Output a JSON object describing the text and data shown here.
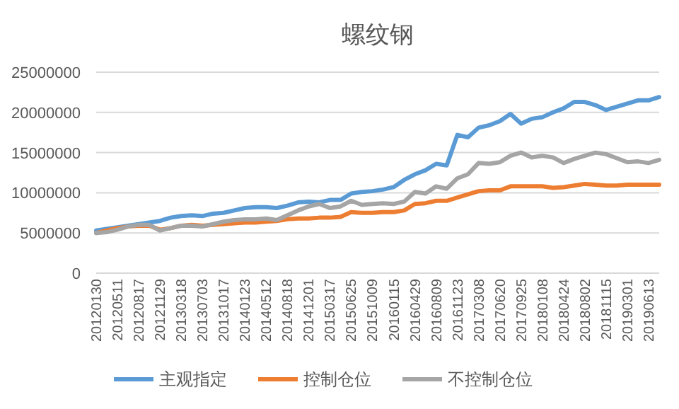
{
  "chart_data": {
    "type": "line",
    "title": "螺纹钢",
    "categories": [
      "20120130",
      null,
      "20120511",
      null,
      "20120817",
      null,
      "20121129",
      null,
      "20130318",
      null,
      "20130703",
      null,
      "20131017",
      null,
      "20140123",
      null,
      "20140512",
      null,
      "20140818",
      null,
      "20141201",
      null,
      "20150317",
      null,
      "20150625",
      null,
      "20151009",
      null,
      "20160115",
      null,
      "20160429",
      null,
      "20160809",
      null,
      "20161123",
      null,
      "20170308",
      null,
      "20170620",
      null,
      "20170925",
      null,
      "20180108",
      null,
      "20180424",
      null,
      "20180802",
      null,
      "20181115",
      null,
      "20190301",
      null,
      "20190613",
      null
    ],
    "series": [
      {
        "name": "主观指定",
        "color": "#5b9bd5",
        "values": [
          5300000,
          5500000,
          5700000,
          5900000,
          6100000,
          6300000,
          6500000,
          6900000,
          7100000,
          7200000,
          7100000,
          7400000,
          7500000,
          7800000,
          8100000,
          8200000,
          8200000,
          8100000,
          8400000,
          8800000,
          8900000,
          8800000,
          9100000,
          9100000,
          9900000,
          10100000,
          10200000,
          10400000,
          10700000,
          11600000,
          12300000,
          12800000,
          13600000,
          13400000,
          17200000,
          16900000,
          18100000,
          18400000,
          18900000,
          19800000,
          18600000,
          19200000,
          19400000,
          20000000,
          20500000,
          21300000,
          21300000,
          20900000,
          20300000,
          20700000,
          21100000,
          21500000,
          21500000,
          21900000
        ]
      },
      {
        "name": "控制仓位",
        "color": "#ed7d31",
        "values": [
          5000000,
          5300000,
          5600000,
          5800000,
          5900000,
          5900000,
          5400000,
          5600000,
          5900000,
          6000000,
          5900000,
          6000000,
          6100000,
          6200000,
          6300000,
          6300000,
          6400000,
          6500000,
          6700000,
          6800000,
          6800000,
          6900000,
          6900000,
          7000000,
          7600000,
          7500000,
          7500000,
          7600000,
          7600000,
          7800000,
          8600000,
          8700000,
          9000000,
          9000000,
          9400000,
          9800000,
          10200000,
          10300000,
          10300000,
          10800000,
          10800000,
          10800000,
          10800000,
          10600000,
          10700000,
          10900000,
          11100000,
          11000000,
          10900000,
          10900000,
          11000000,
          11000000,
          11000000,
          11000000
        ]
      },
      {
        "name": "不控制仓位",
        "color": "#a5a5a5",
        "values": [
          5000000,
          5100000,
          5400000,
          5800000,
          6000000,
          6000000,
          5300000,
          5600000,
          5900000,
          5900000,
          5800000,
          6100000,
          6400000,
          6600000,
          6700000,
          6700000,
          6800000,
          6600000,
          7200000,
          7800000,
          8300000,
          8600000,
          8100000,
          8300000,
          9000000,
          8500000,
          8600000,
          8700000,
          8600000,
          8900000,
          10100000,
          9900000,
          10800000,
          10500000,
          11800000,
          12300000,
          13700000,
          13600000,
          13800000,
          14600000,
          15000000,
          14400000,
          14600000,
          14400000,
          13700000,
          14200000,
          14600000,
          15000000,
          14800000,
          14300000,
          13800000,
          13900000,
          13700000,
          14100000
        ]
      }
    ],
    "ylim": [
      0,
      25000000
    ],
    "yticks": [
      0,
      5000000,
      10000000,
      15000000,
      20000000,
      25000000
    ],
    "grid": "y",
    "legend": "bottom",
    "line_style": "solid",
    "marker": "none"
  }
}
